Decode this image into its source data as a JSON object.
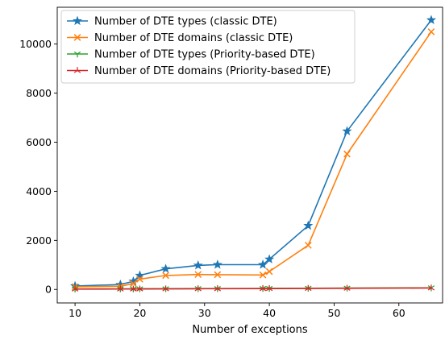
{
  "chart_data": {
    "type": "line",
    "title": "",
    "xlabel": "Number of exceptions",
    "ylabel": "",
    "xlim": [
      7.25,
      66.75
    ],
    "ylim": [
      -550,
      11500
    ],
    "xticks": [
      10,
      20,
      30,
      40,
      50,
      60
    ],
    "yticks": [
      0,
      2000,
      4000,
      6000,
      8000,
      10000
    ],
    "grid": false,
    "legend_position": "top-left",
    "series": [
      {
        "name": "Number of DTE types (classic DTE)",
        "color": "#1f77b4",
        "marker": "star",
        "x": [
          10,
          17,
          19,
          20,
          24,
          29,
          32,
          39,
          40,
          46,
          52,
          65
        ],
        "y": [
          140,
          200,
          330,
          570,
          840,
          980,
          1010,
          1010,
          1230,
          2600,
          6450,
          10980
        ]
      },
      {
        "name": "Number of DTE domains (classic DTE)",
        "color": "#ff7f0e",
        "marker": "x",
        "x": [
          10,
          17,
          19,
          20,
          24,
          29,
          32,
          39,
          40,
          46,
          52,
          65
        ],
        "y": [
          110,
          130,
          240,
          420,
          570,
          610,
          600,
          590,
          730,
          1800,
          5520,
          10500
        ]
      },
      {
        "name": "Number of DTE types (Priority-based DTE)",
        "color": "#2ca02c",
        "marker": "tri_down",
        "x": [
          10,
          17,
          19,
          20,
          24,
          29,
          32,
          39,
          40,
          46,
          52,
          65
        ],
        "y": [
          20,
          22,
          24,
          26,
          30,
          34,
          36,
          40,
          42,
          48,
          54,
          66
        ]
      },
      {
        "name": "Number of DTE domains (Priority-based DTE)",
        "color": "#d62728",
        "marker": "tri_up",
        "x": [
          10,
          17,
          19,
          20,
          24,
          29,
          32,
          39,
          40,
          46,
          52,
          65
        ],
        "y": [
          15,
          16,
          18,
          20,
          24,
          28,
          30,
          34,
          36,
          42,
          48,
          60
        ]
      }
    ]
  }
}
